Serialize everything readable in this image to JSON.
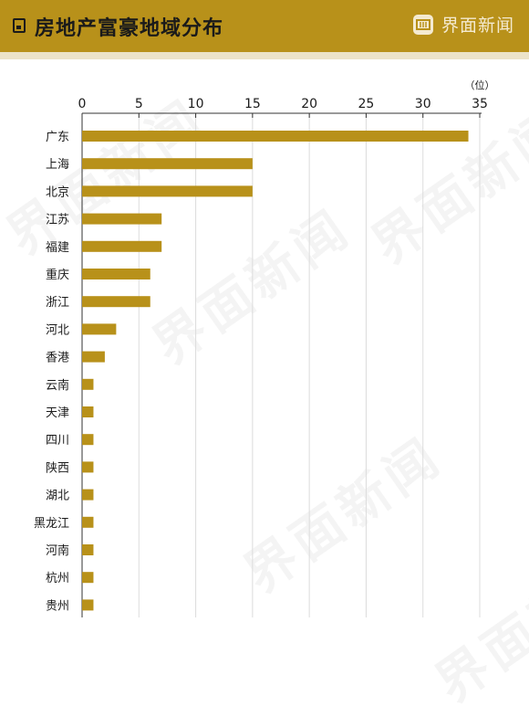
{
  "header": {
    "title": "房地产富豪地域分布",
    "brand": "界面新闻"
  },
  "watermark_text": "界面新闻",
  "colors": {
    "header_bg": "#b8911a",
    "bar": "#b8911a",
    "grid": "#dcdcdc",
    "text": "#1a1a1a"
  },
  "chart_data": {
    "type": "bar",
    "orientation": "horizontal",
    "unit_label": "（位）",
    "xlim": [
      0,
      35
    ],
    "xticks": [
      0,
      5,
      10,
      15,
      20,
      25,
      30,
      35
    ],
    "grid": true,
    "categories": [
      "广东",
      "上海",
      "北京",
      "江苏",
      "福建",
      "重庆",
      "浙江",
      "河北",
      "香港",
      "云南",
      "天津",
      "四川",
      "陕西",
      "湖北",
      "黑龙江",
      "河南",
      "杭州",
      "贵州"
    ],
    "values": [
      34,
      15,
      15,
      7,
      7,
      6,
      6,
      3,
      2,
      1,
      1,
      1,
      1,
      1,
      1,
      1,
      1,
      1
    ]
  }
}
